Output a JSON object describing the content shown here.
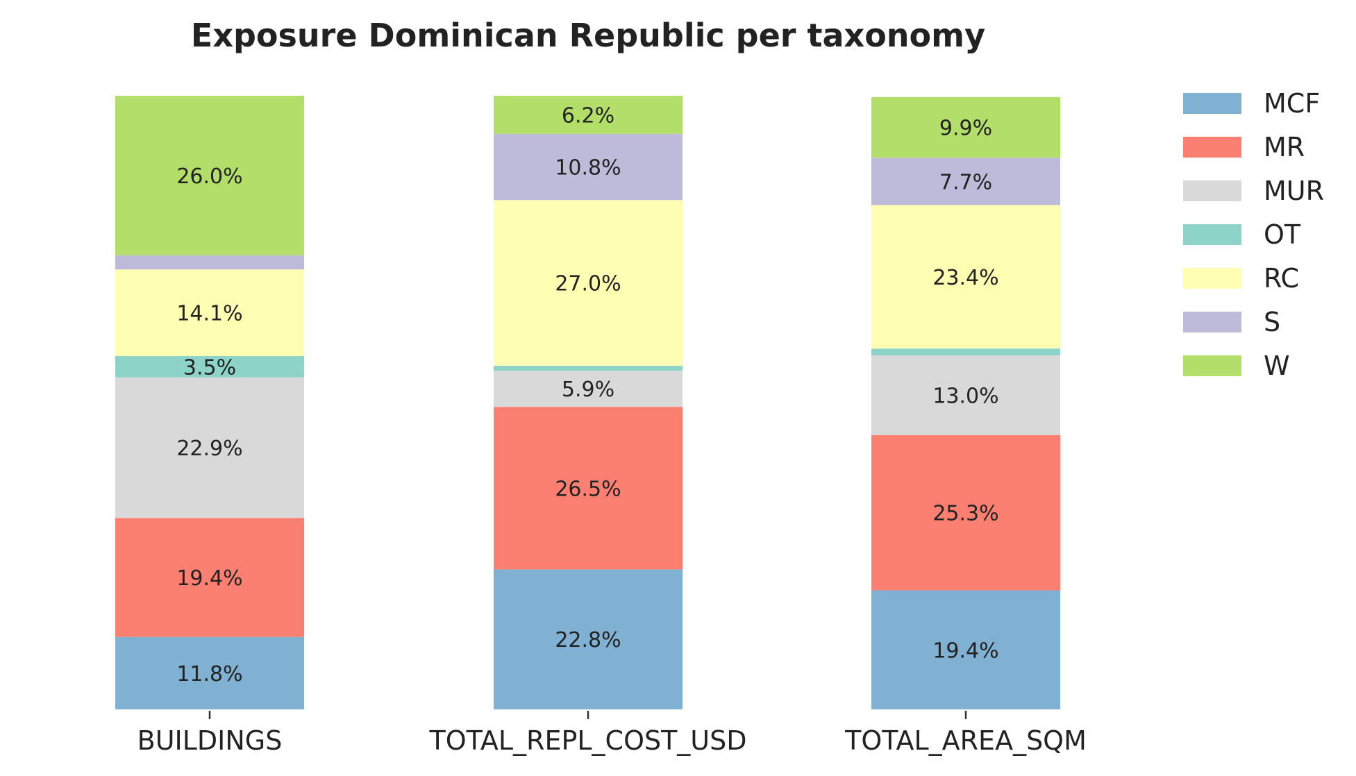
{
  "chart_data": {
    "type": "bar",
    "stacked": true,
    "normalized": true,
    "title": "Exposure Dominican Republic per taxonomy",
    "xlabel": "",
    "ylabel": "",
    "ylim": [
      0,
      100
    ],
    "grid": false,
    "legend_position": "right",
    "categories": [
      "BUILDINGS",
      "TOTAL_REPL_COST_USD",
      "TOTAL_AREA_SQM"
    ],
    "series": [
      {
        "name": "MCF",
        "color": "#80b1d3",
        "values": [
          11.8,
          22.8,
          19.4
        ],
        "labels": [
          "11.8%",
          "22.8%",
          "19.4%"
        ]
      },
      {
        "name": "MR",
        "color": "#fb8072",
        "values": [
          19.4,
          26.5,
          25.3
        ],
        "labels": [
          "19.4%",
          "26.5%",
          "25.3%"
        ]
      },
      {
        "name": "MUR",
        "color": "#d9d9d9",
        "values": [
          22.9,
          5.9,
          13.0
        ],
        "labels": [
          "22.9%",
          "5.9%",
          "13.0%"
        ]
      },
      {
        "name": "OT",
        "color": "#8dd3c7",
        "values": [
          3.5,
          0.8,
          1.1
        ],
        "labels": [
          "3.5%",
          "",
          ""
        ]
      },
      {
        "name": "RC",
        "color": "#ffffb3",
        "values": [
          14.1,
          27.0,
          23.4
        ],
        "labels": [
          "14.1%",
          "27.0%",
          "23.4%"
        ]
      },
      {
        "name": "S",
        "color": "#bebada",
        "values": [
          2.3,
          10.8,
          7.7
        ],
        "labels": [
          "",
          "10.8%",
          "7.7%"
        ]
      },
      {
        "name": "W",
        "color": "#b3de69",
        "values": [
          26.0,
          6.2,
          9.9
        ],
        "labels": [
          "26.0%",
          "6.2%",
          "9.9%"
        ]
      }
    ]
  }
}
